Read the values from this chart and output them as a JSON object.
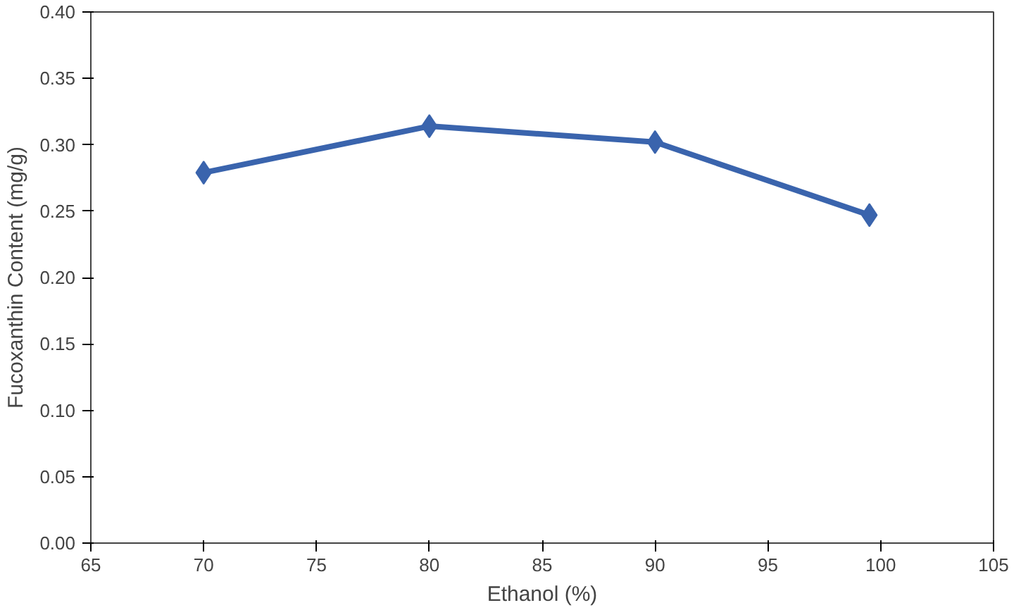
{
  "chart_data": {
    "type": "line",
    "xlabel": "Ethanol (%)",
    "ylabel": "Fucoxanthin Content (mg/g)",
    "x": [
      70,
      80,
      90,
      99.5
    ],
    "series": [
      {
        "color": "#3a64ad",
        "values": [
          0.279,
          0.314,
          0.302,
          0.247
        ]
      }
    ],
    "xlim": [
      65,
      105
    ],
    "xticks": [
      65,
      70,
      75,
      80,
      85,
      90,
      95,
      100,
      105
    ],
    "ylim": [
      0,
      0.4
    ],
    "yticks": [
      {
        "value": 0,
        "label": "0.00"
      },
      {
        "value": 0.05,
        "label": "0.05"
      },
      {
        "value": 0.1,
        "label": "0.10"
      },
      {
        "value": 0.15,
        "label": "0.15"
      },
      {
        "value": 0.2,
        "label": "0.20"
      },
      {
        "value": 0.25,
        "label": "0.25"
      },
      {
        "value": 0.3,
        "label": "0.30"
      },
      {
        "value": 0.35,
        "label": "0.35"
      },
      {
        "value": 0.4,
        "label": "0.40"
      }
    ],
    "grid": false,
    "marker": "diamond",
    "line_style": "solid"
  }
}
